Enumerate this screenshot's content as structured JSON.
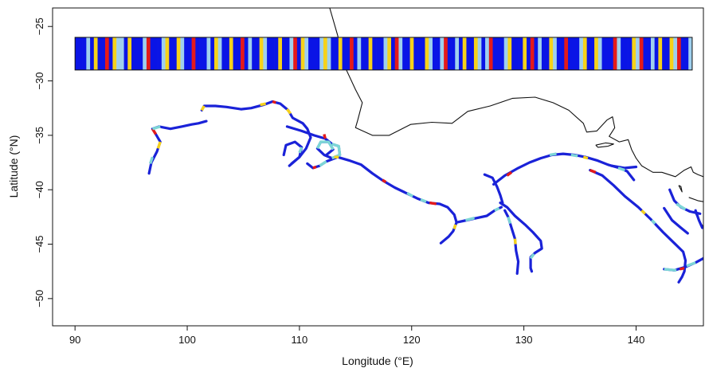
{
  "chart_data": {
    "type": "map",
    "xlabel": "Longitude (°E)",
    "ylabel": "Latitude (°N)",
    "xlim": [
      88,
      146
    ],
    "ylim": [
      -52.5,
      -23.3
    ],
    "xticks": [
      90,
      100,
      110,
      120,
      130,
      140
    ],
    "yticks": [
      -25,
      -30,
      -35,
      -40,
      -45,
      -50
    ],
    "xtick_labels": [
      "90",
      "100",
      "110",
      "120",
      "130",
      "140"
    ],
    "ytick_labels": [
      "−25",
      "−30",
      "−35",
      "−40",
      "−45",
      "−50"
    ],
    "grid": false,
    "colors": {
      "track": "#1a22d8",
      "coast": "#111111",
      "state_blue": "#0a14e6",
      "state_lightblue": "#9fd0ee",
      "state_yellow": "#f6d21a",
      "state_red": "#e41a1a",
      "state_cyan": "#7dd6d6"
    },
    "state_strip": {
      "lon_range": [
        90,
        145
      ],
      "lat_range": [
        -29,
        -26
      ],
      "palette": [
        "#0a14e6",
        "#9fd0ee",
        "#f6d21a",
        "#e41a1a"
      ],
      "sequence": "00010200302110200013000120021003000102100200301002100020013021000121002003010020001203100200021001300102002101300012000203010021003000120021000310002130010200213001"
    },
    "coastline": [
      [
        [
          112.7,
          -23.3
        ],
        [
          113.4,
          -25.8
        ],
        [
          113.8,
          -27.5
        ],
        [
          114.1,
          -28.8
        ],
        [
          115.0,
          -30.8
        ],
        [
          115.6,
          -32.0
        ],
        [
          115.2,
          -33.6
        ],
        [
          115.0,
          -34.3
        ],
        [
          116.5,
          -35.0
        ],
        [
          118.0,
          -35.0
        ],
        [
          119.9,
          -34.0
        ],
        [
          121.8,
          -33.8
        ],
        [
          123.6,
          -33.9
        ],
        [
          125.0,
          -32.8
        ],
        [
          127.0,
          -32.3
        ],
        [
          129.0,
          -31.6
        ],
        [
          131.0,
          -31.5
        ],
        [
          132.6,
          -32.0
        ],
        [
          134.0,
          -32.7
        ],
        [
          135.3,
          -33.9
        ],
        [
          135.6,
          -34.7
        ],
        [
          136.5,
          -34.6
        ],
        [
          137.4,
          -33.6
        ],
        [
          137.9,
          -33.3
        ],
        [
          138.1,
          -34.3
        ],
        [
          137.6,
          -35.1
        ],
        [
          138.5,
          -35.6
        ],
        [
          139.3,
          -35.4
        ],
        [
          139.6,
          -36.3
        ],
        [
          140.0,
          -37.1
        ],
        [
          140.5,
          -37.8
        ],
        [
          141.5,
          -38.4
        ],
        [
          142.3,
          -38.4
        ],
        [
          143.5,
          -38.8
        ],
        [
          144.3,
          -38.2
        ],
        [
          144.9,
          -37.9
        ],
        [
          145.1,
          -38.4
        ],
        [
          145.5,
          -38.6
        ],
        [
          146.0,
          -38.8
        ]
      ],
      [
        [
          136.4,
          -35.9
        ],
        [
          137.3,
          -35.7
        ],
        [
          138.0,
          -35.8
        ],
        [
          137.5,
          -36.0
        ],
        [
          136.6,
          -36.1
        ],
        [
          136.4,
          -35.9
        ]
      ],
      [
        [
          143.8,
          -39.6
        ],
        [
          144.1,
          -40.2
        ],
        [
          144.0,
          -39.7
        ],
        [
          143.8,
          -39.6
        ]
      ],
      [
        [
          144.7,
          -40.7
        ],
        [
          145.5,
          -41.0
        ],
        [
          146.0,
          -41.1
        ]
      ],
      [
        [
          145.2,
          -42.0
        ],
        [
          145.6,
          -42.8
        ],
        [
          146.0,
          -43.4
        ]
      ]
    ],
    "tracks": [
      [
        [
          96.6,
          -38.5
        ],
        [
          96.8,
          -37.5
        ],
        [
          97.3,
          -36.5
        ],
        [
          97.6,
          -35.6
        ],
        [
          97.2,
          -34.9
        ],
        [
          96.9,
          -34.4
        ],
        [
          97.5,
          -34.2
        ],
        [
          98.5,
          -34.4
        ],
        [
          99.5,
          -34.2
        ],
        [
          100.4,
          -34.0
        ],
        [
          101.0,
          -33.9
        ],
        [
          101.7,
          -33.7
        ]
      ],
      [
        [
          101.3,
          -32.7
        ],
        [
          101.5,
          -32.3
        ],
        [
          102.5,
          -32.3
        ],
        [
          103.5,
          -32.4
        ],
        [
          104.8,
          -32.6
        ],
        [
          105.7,
          -32.5
        ],
        [
          106.8,
          -32.2
        ],
        [
          107.6,
          -31.9
        ],
        [
          108.3,
          -32.1
        ],
        [
          109.0,
          -32.7
        ],
        [
          109.4,
          -33.4
        ],
        [
          110.3,
          -33.9
        ],
        [
          110.7,
          -34.4
        ],
        [
          111.0,
          -35.2
        ],
        [
          110.6,
          -36.2
        ],
        [
          110.0,
          -37.0
        ],
        [
          109.1,
          -37.8
        ]
      ],
      [
        [
          108.6,
          -36.8
        ],
        [
          108.8,
          -35.9
        ],
        [
          109.6,
          -35.6
        ],
        [
          110.2,
          -36.1
        ],
        [
          110.0,
          -37.0
        ],
        [
          109.3,
          -37.6
        ]
      ],
      [
        [
          108.9,
          -34.2
        ],
        [
          110.2,
          -34.6
        ],
        [
          111.3,
          -35.0
        ],
        [
          112.3,
          -35.3
        ],
        [
          112.9,
          -35.8
        ],
        [
          113.5,
          -36.0
        ],
        [
          113.6,
          -36.8
        ],
        [
          112.9,
          -37.1
        ],
        [
          112.2,
          -36.8
        ],
        [
          111.6,
          -36.2
        ],
        [
          111.9,
          -35.6
        ],
        [
          112.6,
          -35.6
        ],
        [
          113.0,
          -36.3
        ],
        [
          112.4,
          -36.8
        ]
      ],
      [
        [
          110.7,
          -37.6
        ],
        [
          111.2,
          -38.0
        ],
        [
          111.8,
          -37.8
        ],
        [
          112.4,
          -37.4
        ],
        [
          113.4,
          -37.0
        ],
        [
          114.4,
          -37.3
        ],
        [
          115.5,
          -37.7
        ],
        [
          116.5,
          -38.5
        ],
        [
          117.5,
          -39.2
        ],
        [
          118.5,
          -39.8
        ],
        [
          119.5,
          -40.3
        ],
        [
          120.5,
          -40.8
        ],
        [
          121.5,
          -41.2
        ],
        [
          122.5,
          -41.3
        ],
        [
          123.2,
          -41.6
        ],
        [
          123.8,
          -42.3
        ],
        [
          124.0,
          -43.0
        ],
        [
          123.7,
          -43.8
        ],
        [
          123.3,
          -44.3
        ],
        [
          122.6,
          -44.9
        ]
      ],
      [
        [
          124.0,
          -43.0
        ],
        [
          124.9,
          -42.8
        ],
        [
          125.8,
          -42.6
        ],
        [
          126.7,
          -42.4
        ],
        [
          127.4,
          -41.9
        ],
        [
          128.0,
          -41.6
        ]
      ],
      [
        [
          128.3,
          -41.9
        ],
        [
          128.6,
          -42.5
        ],
        [
          128.9,
          -43.5
        ],
        [
          129.2,
          -44.5
        ],
        [
          129.3,
          -45.6
        ],
        [
          129.5,
          -46.6
        ],
        [
          129.4,
          -47.7
        ]
      ],
      [
        [
          127.9,
          -41.2
        ],
        [
          128.5,
          -41.6
        ],
        [
          129.2,
          -42.4
        ],
        [
          130.1,
          -43.2
        ],
        [
          130.8,
          -43.9
        ],
        [
          131.5,
          -44.7
        ],
        [
          131.6,
          -45.4
        ],
        [
          131.0,
          -45.8
        ],
        [
          130.6,
          -46.2
        ],
        [
          130.6,
          -47.2
        ],
        [
          130.7,
          -47.5
        ]
      ],
      [
        [
          126.5,
          -38.6
        ],
        [
          127.2,
          -38.9
        ],
        [
          127.6,
          -39.7
        ],
        [
          127.9,
          -40.5
        ],
        [
          128.1,
          -41.2
        ]
      ],
      [
        [
          127.3,
          -39.5
        ],
        [
          128.3,
          -38.7
        ],
        [
          129.5,
          -38.0
        ],
        [
          130.5,
          -37.5
        ],
        [
          131.5,
          -37.1
        ],
        [
          132.5,
          -36.8
        ],
        [
          133.5,
          -36.7
        ],
        [
          134.5,
          -36.8
        ],
        [
          135.5,
          -37.0
        ],
        [
          136.5,
          -37.3
        ],
        [
          137.5,
          -37.7
        ],
        [
          138.5,
          -38.0
        ],
        [
          139.2,
          -38.3
        ],
        [
          139.8,
          -39.1
        ]
      ],
      [
        [
          137.8,
          -37.8
        ],
        [
          139.0,
          -38.0
        ],
        [
          140.0,
          -37.9
        ]
      ],
      [
        [
          135.9,
          -38.2
        ],
        [
          137.0,
          -38.7
        ],
        [
          138.0,
          -39.6
        ],
        [
          139.0,
          -40.6
        ],
        [
          140.2,
          -41.6
        ],
        [
          141.3,
          -42.7
        ],
        [
          142.4,
          -43.9
        ],
        [
          143.4,
          -44.9
        ],
        [
          144.2,
          -45.7
        ],
        [
          144.4,
          -46.5
        ],
        [
          144.3,
          -47.5
        ],
        [
          144.1,
          -48.0
        ],
        [
          143.8,
          -48.5
        ]
      ],
      [
        [
          143.0,
          -40.0
        ],
        [
          143.4,
          -41.0
        ],
        [
          144.0,
          -41.6
        ],
        [
          144.8,
          -42.0
        ],
        [
          145.7,
          -42.2
        ]
      ],
      [
        [
          142.5,
          -41.7
        ],
        [
          143.2,
          -42.8
        ],
        [
          144.0,
          -43.5
        ],
        [
          144.6,
          -44.0
        ]
      ],
      [
        [
          142.5,
          -47.3
        ],
        [
          143.4,
          -47.4
        ],
        [
          144.4,
          -47.1
        ],
        [
          145.3,
          -46.7
        ],
        [
          146.0,
          -46.3
        ]
      ],
      [
        [
          145.3,
          -41.9
        ],
        [
          145.6,
          -42.8
        ],
        [
          145.9,
          -43.5
        ]
      ]
    ],
    "segments": [
      {
        "color": "#e41a1a",
        "pts": [
          [
            97.2,
            -34.9
          ],
          [
            96.9,
            -34.4
          ]
        ]
      },
      {
        "color": "#f6d21a",
        "pts": [
          [
            97.6,
            -35.6
          ],
          [
            97.4,
            -36.2
          ]
        ]
      },
      {
        "color": "#7dd6d6",
        "pts": [
          [
            96.9,
            -34.4
          ],
          [
            97.6,
            -34.2
          ]
        ]
      },
      {
        "color": "#7dd6d6",
        "pts": [
          [
            96.7,
            -37.6
          ],
          [
            96.9,
            -37.0
          ]
        ]
      },
      {
        "color": "#f6d21a",
        "pts": [
          [
            101.3,
            -32.7
          ],
          [
            101.5,
            -32.3
          ]
        ]
      },
      {
        "color": "#f6d21a",
        "pts": [
          [
            106.5,
            -32.2
          ],
          [
            107.0,
            -32.1
          ]
        ]
      },
      {
        "color": "#e41a1a",
        "pts": [
          [
            107.6,
            -31.9
          ],
          [
            107.9,
            -32.0
          ]
        ]
      },
      {
        "color": "#f6d21a",
        "pts": [
          [
            108.9,
            -32.6
          ],
          [
            109.2,
            -33.0
          ]
        ]
      },
      {
        "color": "#7dd6d6",
        "pts": [
          [
            111.6,
            -36.2
          ],
          [
            111.9,
            -35.6
          ],
          [
            112.6,
            -35.6
          ],
          [
            113.0,
            -36.3
          ]
        ]
      },
      {
        "color": "#7dd6d6",
        "pts": [
          [
            112.9,
            -35.8
          ],
          [
            113.5,
            -36.0
          ],
          [
            113.6,
            -36.8
          ],
          [
            112.9,
            -37.1
          ]
        ]
      },
      {
        "color": "#e41a1a",
        "pts": [
          [
            112.2,
            -34.9
          ],
          [
            112.3,
            -35.3
          ]
        ]
      },
      {
        "color": "#7dd6d6",
        "pts": [
          [
            110.2,
            -36.1
          ],
          [
            110.0,
            -36.6
          ]
        ]
      },
      {
        "color": "#e41a1a",
        "pts": [
          [
            111.2,
            -38.0
          ],
          [
            111.5,
            -37.9
          ]
        ]
      },
      {
        "color": "#7dd6d6",
        "pts": [
          [
            111.8,
            -37.8
          ],
          [
            112.4,
            -37.4
          ]
        ]
      },
      {
        "color": "#f6d21a",
        "pts": [
          [
            113.1,
            -37.0
          ],
          [
            113.5,
            -37.0
          ]
        ]
      },
      {
        "color": "#e41a1a",
        "pts": [
          [
            117.4,
            -39.1
          ],
          [
            117.7,
            -39.3
          ]
        ]
      },
      {
        "color": "#7dd6d6",
        "pts": [
          [
            119.6,
            -40.3
          ],
          [
            120.1,
            -40.6
          ]
        ]
      },
      {
        "color": "#7dd6d6",
        "pts": [
          [
            120.8,
            -40.9
          ],
          [
            121.3,
            -41.1
          ]
        ]
      },
      {
        "color": "#e41a1a",
        "pts": [
          [
            121.6,
            -41.2
          ],
          [
            122.2,
            -41.3
          ]
        ]
      },
      {
        "color": "#7dd6d6",
        "pts": [
          [
            124.8,
            -42.8
          ],
          [
            125.6,
            -42.6
          ]
        ]
      },
      {
        "color": "#f6d21a",
        "pts": [
          [
            123.9,
            -43.2
          ],
          [
            123.8,
            -43.6
          ]
        ]
      },
      {
        "color": "#7dd6d6",
        "pts": [
          [
            127.4,
            -41.9
          ],
          [
            127.8,
            -41.7
          ]
        ]
      },
      {
        "color": "#7dd6d6",
        "pts": [
          [
            128.6,
            -42.5
          ],
          [
            128.8,
            -43.1
          ]
        ]
      },
      {
        "color": "#f6d21a",
        "pts": [
          [
            129.2,
            -44.5
          ],
          [
            129.25,
            -45.0
          ]
        ]
      },
      {
        "color": "#7dd6d6",
        "pts": [
          [
            130.9,
            -45.9
          ],
          [
            130.6,
            -46.3
          ]
        ]
      },
      {
        "color": "#e41a1a",
        "pts": [
          [
            128.5,
            -38.7
          ],
          [
            128.9,
            -38.4
          ]
        ]
      },
      {
        "color": "#7dd6d6",
        "pts": [
          [
            132.3,
            -36.8
          ],
          [
            132.9,
            -36.7
          ]
        ]
      },
      {
        "color": "#7dd6d6",
        "pts": [
          [
            134.2,
            -36.8
          ],
          [
            134.8,
            -36.9
          ]
        ]
      },
      {
        "color": "#f6d21a",
        "pts": [
          [
            135.3,
            -37.0
          ],
          [
            135.7,
            -37.1
          ]
        ]
      },
      {
        "color": "#e41a1a",
        "pts": [
          [
            135.9,
            -38.2
          ],
          [
            136.4,
            -38.4
          ]
        ]
      },
      {
        "color": "#7dd6d6",
        "pts": [
          [
            138.4,
            -38.0
          ],
          [
            139.0,
            -38.2
          ]
        ]
      },
      {
        "color": "#f6d21a",
        "pts": [
          [
            140.5,
            -41.9
          ],
          [
            140.8,
            -42.2
          ]
        ]
      },
      {
        "color": "#7dd6d6",
        "pts": [
          [
            141.4,
            -42.8
          ],
          [
            141.7,
            -43.1
          ]
        ]
      },
      {
        "color": "#7dd6d6",
        "pts": [
          [
            142.5,
            -47.3
          ],
          [
            143.6,
            -47.4
          ]
        ]
      },
      {
        "color": "#e41a1a",
        "pts": [
          [
            143.9,
            -47.3
          ],
          [
            144.3,
            -47.2
          ]
        ]
      },
      {
        "color": "#7dd6d6",
        "pts": [
          [
            144.5,
            -47.0
          ],
          [
            145.3,
            -46.7
          ]
        ]
      },
      {
        "color": "#7dd6d6",
        "pts": [
          [
            143.6,
            -41.3
          ],
          [
            144.4,
            -41.8
          ]
        ]
      }
    ]
  }
}
